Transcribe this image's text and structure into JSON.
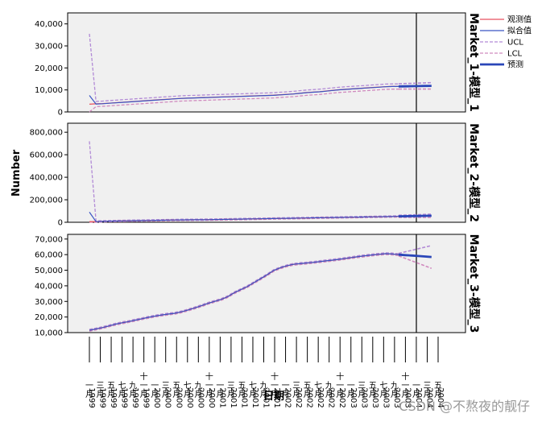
{
  "chart_data": {
    "type": "line",
    "ylabel": "Number",
    "xlabel": "日期",
    "legend": {
      "placement": "top-right",
      "items": [
        {
          "label": "观测值",
          "color": "#e8515f",
          "style": "solid"
        },
        {
          "label": "拟合值",
          "color": "#3a55c4",
          "style": "solid"
        },
        {
          "label": "UCL",
          "color": "#b28ad6",
          "style": "dashed"
        },
        {
          "label": "LCL",
          "color": "#d08abf",
          "style": "dashed"
        },
        {
          "label": "预测",
          "color": "#2a46b8",
          "style": "thick"
        }
      ]
    },
    "x_tick_labels": [
      {
        "month": "一月",
        "year": "1999"
      },
      {
        "month": "三月",
        "year": "1999"
      },
      {
        "month": "五月",
        "year": "1999"
      },
      {
        "month": "七月",
        "year": "1999"
      },
      {
        "month": "九月",
        "year": "1999"
      },
      {
        "month": "十一月",
        "year": "1999"
      },
      {
        "month": "一月",
        "year": "2000"
      },
      {
        "month": "三月",
        "year": "2000"
      },
      {
        "month": "五月",
        "year": "2000"
      },
      {
        "month": "七月",
        "year": "2000"
      },
      {
        "month": "九月",
        "year": "2000"
      },
      {
        "month": "十一月",
        "year": "2000"
      },
      {
        "month": "一月",
        "year": "2001"
      },
      {
        "month": "三月",
        "year": "2001"
      },
      {
        "month": "五月",
        "year": "2001"
      },
      {
        "month": "七月",
        "year": "2001"
      },
      {
        "month": "九月",
        "year": "2001"
      },
      {
        "month": "十一月",
        "year": "2001"
      },
      {
        "month": "一月",
        "year": "2002"
      },
      {
        "month": "三月",
        "year": "2002"
      },
      {
        "month": "五月",
        "year": "2002"
      },
      {
        "month": "七月",
        "year": "2002"
      },
      {
        "month": "九月",
        "year": "2002"
      },
      {
        "month": "十一月",
        "year": "2002"
      },
      {
        "month": "一月",
        "year": "2003"
      },
      {
        "month": "三月",
        "year": "2003"
      },
      {
        "month": "五月",
        "year": "2003"
      },
      {
        "month": "七月",
        "year": "2003"
      },
      {
        "month": "九月",
        "year": "2003"
      },
      {
        "month": "十一月",
        "year": "2003"
      },
      {
        "month": "一月",
        "year": "2004"
      },
      {
        "month": "三月",
        "year": "2004"
      },
      {
        "month": "五月",
        "year": "2004"
      }
    ],
    "forecast_start": {
      "month": "一月",
      "year": "2004"
    },
    "panels": [
      {
        "label": "Market_1-模型_1",
        "ylim": [
          0,
          45000
        ],
        "yticks": [
          0,
          10000,
          20000,
          30000,
          40000
        ],
        "ytick_labels": [
          "0",
          "10,000",
          "20,000",
          "30,000",
          "40,000"
        ],
        "observed": [
          3500,
          3700,
          3800,
          4000,
          4200,
          4400,
          4600,
          4800,
          5000,
          5200,
          5400,
          5600,
          5800,
          6000,
          6200,
          6300,
          6400,
          6500,
          6600,
          6700,
          6800,
          6900,
          7000,
          7100,
          7200,
          7300,
          7400,
          7500,
          7600,
          7800,
          8000,
          8200,
          8500,
          8800,
          9000,
          9200,
          9500,
          9800,
          10100,
          10300,
          10500,
          10700,
          10900,
          11100,
          11300,
          11500,
          11600,
          11600
        ],
        "fitted": [
          7500,
          3600,
          3750,
          3950,
          4150,
          4350,
          4550,
          4750,
          4950,
          5150,
          5350,
          5550,
          5750,
          5950,
          6150,
          6250,
          6350,
          6450,
          6550,
          6650,
          6750,
          6850,
          6950,
          7050,
          7150,
          7250,
          7350,
          7450,
          7550,
          7750,
          7950,
          8150,
          8450,
          8750,
          8950,
          9150,
          9450,
          9750,
          10050,
          10250,
          10450,
          10650,
          10850,
          11050,
          11250,
          11450,
          11550,
          11550
        ],
        "ucl": [
          35500,
          4800,
          4950,
          5150,
          5350,
          5550,
          5750,
          5950,
          6150,
          6350,
          6550,
          6750,
          6950,
          7150,
          7350,
          7450,
          7550,
          7650,
          7750,
          7850,
          7950,
          8050,
          8150,
          8250,
          8350,
          8450,
          8550,
          8650,
          8750,
          8950,
          9150,
          9350,
          9650,
          9950,
          10150,
          10350,
          10650,
          10950,
          11250,
          11450,
          11650,
          11850,
          12050,
          12250,
          12450,
          12650,
          12750,
          12750
        ],
        "lcl": [
          0,
          2400,
          2550,
          2750,
          2950,
          3150,
          3350,
          3550,
          3750,
          3950,
          4150,
          4350,
          4550,
          4750,
          4950,
          5050,
          5150,
          5250,
          5350,
          5450,
          5550,
          5650,
          5750,
          5850,
          5950,
          6050,
          6150,
          6250,
          6350,
          6550,
          6750,
          6950,
          7250,
          7550,
          7750,
          7950,
          8250,
          8550,
          8850,
          9050,
          9250,
          9450,
          9650,
          9850,
          10050,
          10250,
          10350,
          10350
        ],
        "forecast": [
          11600,
          11650,
          11700,
          11750,
          11800,
          11850
        ],
        "forecast_ucl": [
          12800,
          12900,
          13000,
          13100,
          13200,
          13300
        ],
        "forecast_lcl": [
          10400,
          10400,
          10400,
          10400,
          10400,
          10400
        ]
      },
      {
        "label": "Market_2-模型_2",
        "ylim": [
          0,
          880000
        ],
        "yticks": [
          0,
          200000,
          400000,
          600000,
          800000
        ],
        "ytick_labels": [
          "0",
          "200,000",
          "400,000",
          "600,000",
          "800,000"
        ],
        "observed": [
          5000,
          6000,
          8000,
          10000,
          11000,
          12000,
          13000,
          14000,
          15000,
          16000,
          17000,
          18000,
          19000,
          20000,
          21000,
          21500,
          22000,
          22500,
          23000,
          24000,
          25000,
          26000,
          27000,
          28000,
          29000,
          30000,
          31000,
          32000,
          33000,
          34000,
          35000,
          36000,
          37000,
          38000,
          39000,
          40000,
          41000,
          42000,
          43000,
          44000,
          45000,
          46000,
          47000,
          48000,
          49000,
          50000,
          51000,
          52000
        ],
        "fitted": [
          90000,
          6000,
          8000,
          10000,
          11000,
          12000,
          13000,
          14000,
          15000,
          16000,
          17000,
          18000,
          19000,
          20000,
          21000,
          21500,
          22000,
          22500,
          23000,
          24000,
          25000,
          26000,
          27000,
          28000,
          29000,
          30000,
          31000,
          32000,
          33000,
          34000,
          35000,
          36000,
          37000,
          38000,
          39000,
          40000,
          41000,
          42000,
          43000,
          44000,
          45000,
          46000,
          47000,
          48000,
          49000,
          50000,
          51000,
          52000
        ],
        "ucl": [
          720000,
          12000,
          14000,
          16000,
          17000,
          18000,
          19000,
          20000,
          21000,
          22000,
          23000,
          24000,
          25000,
          26000,
          27000,
          27500,
          28000,
          28500,
          29000,
          30000,
          31000,
          32000,
          33000,
          34000,
          35000,
          36000,
          37000,
          38000,
          39000,
          40000,
          41000,
          42000,
          43000,
          44000,
          45000,
          46000,
          47000,
          48000,
          49000,
          50000,
          51000,
          52000,
          53000,
          54000,
          55000,
          56000,
          57000,
          58000
        ],
        "lcl": [
          0,
          0,
          2000,
          4000,
          5000,
          6000,
          7000,
          8000,
          9000,
          10000,
          11000,
          12000,
          13000,
          14000,
          15000,
          15500,
          16000,
          16500,
          17000,
          18000,
          19000,
          20000,
          21000,
          22000,
          23000,
          24000,
          25000,
          26000,
          27000,
          28000,
          29000,
          30000,
          31000,
          32000,
          33000,
          34000,
          35000,
          36000,
          37000,
          38000,
          39000,
          40000,
          41000,
          42000,
          43000,
          44000,
          45000,
          46000
        ],
        "forecast": [
          53000,
          54000,
          55000,
          56000,
          57000,
          58000
        ],
        "forecast_ucl": [
          62000,
          64000,
          66000,
          68000,
          70000,
          72000
        ],
        "forecast_lcl": [
          44000,
          44000,
          44000,
          44000,
          44000,
          44000
        ]
      },
      {
        "label": "Market_3-模型_3",
        "ylim": [
          10000,
          73000
        ],
        "yticks": [
          10000,
          20000,
          30000,
          40000,
          50000,
          60000,
          70000
        ],
        "ytick_labels": [
          "10,000",
          "20,000",
          "30,000",
          "40,000",
          "50,000",
          "60,000",
          "70,000"
        ],
        "observed": [
          11500,
          12300,
          13200,
          14300,
          15400,
          16300,
          17100,
          18000,
          18900,
          19800,
          20600,
          21300,
          21900,
          22400,
          23300,
          24500,
          25800,
          27200,
          28700,
          30000,
          31200,
          33000,
          35500,
          37500,
          39500,
          42000,
          44500,
          47000,
          49800,
          51500,
          52800,
          53800,
          54200,
          54600,
          55000,
          55500,
          56000,
          56500,
          57000,
          57600,
          58200,
          58800,
          59300,
          59800,
          60200,
          60600,
          60400,
          60000
        ],
        "fitted": [
          11500,
          12300,
          13200,
          14300,
          15400,
          16300,
          17100,
          18000,
          18900,
          19800,
          20600,
          21300,
          21900,
          22400,
          23300,
          24500,
          25800,
          27200,
          28700,
          30000,
          31200,
          33000,
          35500,
          37500,
          39500,
          42000,
          44500,
          47000,
          49800,
          51500,
          52800,
          53800,
          54200,
          54600,
          55000,
          55500,
          56000,
          56500,
          57000,
          57600,
          58200,
          58800,
          59300,
          59800,
          60200,
          60600,
          60400,
          60000
        ],
        "ucl": [
          12100,
          12900,
          13800,
          14900,
          16000,
          16900,
          17700,
          18600,
          19500,
          20400,
          21200,
          21900,
          22500,
          23000,
          23900,
          25100,
          26400,
          27800,
          29300,
          30600,
          31800,
          33600,
          36100,
          38100,
          40100,
          42600,
          45100,
          47600,
          50400,
          52100,
          53400,
          54400,
          54800,
          55200,
          55600,
          56100,
          56600,
          57100,
          57600,
          58200,
          58800,
          59400,
          59900,
          60400,
          60800,
          61200,
          61000,
          60600
        ],
        "lcl": [
          10900,
          11700,
          12600,
          13700,
          14800,
          15700,
          16500,
          17400,
          18300,
          19200,
          20000,
          20700,
          21300,
          21800,
          22700,
          23900,
          25200,
          26600,
          28100,
          29400,
          30600,
          32400,
          34900,
          36900,
          38900,
          41400,
          43900,
          46400,
          49200,
          50900,
          52200,
          53200,
          53600,
          54000,
          54400,
          54900,
          55400,
          55900,
          56400,
          57000,
          57600,
          58200,
          58700,
          59200,
          59600,
          60000,
          59800,
          59400
        ],
        "forecast": [
          60000,
          59700,
          59400,
          59100,
          58800,
          58500
        ],
        "forecast_ucl": [
          60800,
          61800,
          62800,
          63800,
          64800,
          65800
        ],
        "forecast_lcl": [
          59200,
          57600,
          56000,
          54400,
          52800,
          51200
        ]
      }
    ]
  },
  "watermark": "CSDN @不熬夜的靓仔"
}
